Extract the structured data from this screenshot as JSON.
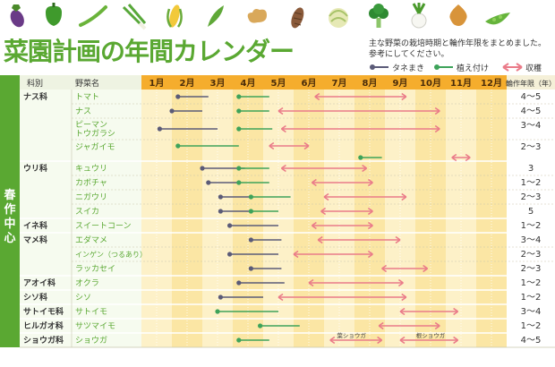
{
  "title": "菜園計画の年間カレンダー",
  "subtitle_lines": [
    "主な野菜の栽培時期と輪作年限をまとめました。",
    "参考にしてください。"
  ],
  "legend": {
    "sowing": "タネまき",
    "planting": "植え付け",
    "harvest": "収穫"
  },
  "colors": {
    "sowing": "#5b5b78",
    "planting": "#3ea35a",
    "harvest": "#ea7b89",
    "brand_green": "#5aa832",
    "header_orange": "#f5ad2d"
  },
  "vegetable_icons": [
    "eggplant-icon",
    "green-pepper-icon",
    "bean-icon",
    "green-onion-icon",
    "corn-icon",
    "okra-icon",
    "ginger-icon",
    "taro-icon",
    "cabbage-icon",
    "broccoli-icon",
    "turnip-icon",
    "onion-icon",
    "snap-pea-icon"
  ],
  "headers": {
    "family": "科別",
    "vegetable": "野菜名",
    "months": [
      "1月",
      "2月",
      "3月",
      "4月",
      "5月",
      "6月",
      "7月",
      "8月",
      "9月",
      "10月",
      "11月",
      "12月"
    ],
    "rotation": "輪作年限（年）"
  },
  "section_label": "春作中心",
  "chart_data": {
    "type": "gantt",
    "x_unit": "month",
    "xlim": [
      1,
      13
    ],
    "rows": [
      {
        "family": "ナス科",
        "name": "トマト",
        "rotation": "4～5",
        "bars": [
          {
            "type": "sowing",
            "start": 2.2,
            "end": 3.2
          },
          {
            "type": "planting",
            "start": 4.2,
            "end": 5.2
          },
          {
            "type": "harvest",
            "start": 6.7,
            "end": 9.7
          }
        ]
      },
      {
        "family": "",
        "name": "ナス",
        "rotation": "4～5",
        "bars": [
          {
            "type": "sowing",
            "start": 2.0,
            "end": 3.0
          },
          {
            "type": "planting",
            "start": 4.2,
            "end": 5.2
          },
          {
            "type": "harvest",
            "start": 5.5,
            "end": 10.8
          }
        ]
      },
      {
        "family": "",
        "name": "ピーマン\nトウガラシ",
        "rotation": "3～4",
        "bars": [
          {
            "type": "sowing",
            "start": 1.6,
            "end": 3.5
          },
          {
            "type": "planting",
            "start": 4.2,
            "end": 5.3
          },
          {
            "type": "harvest",
            "start": 5.6,
            "end": 10.8
          }
        ]
      },
      {
        "family": "",
        "name": "ジャガイモ",
        "rotation": "2～3",
        "bars": [
          {
            "type": "planting",
            "start": 2.2,
            "end": 4.2
          },
          {
            "type": "harvest",
            "start": 5.2,
            "end": 6.5
          },
          {
            "type": "planting",
            "start": 8.2,
            "end": 8.9
          },
          {
            "type": "harvest",
            "start": 11.2,
            "end": 11.8
          }
        ]
      },
      {
        "family": "ウリ科",
        "name": "キュウリ",
        "rotation": "3",
        "bars": [
          {
            "type": "sowing",
            "start": 3.0,
            "end": 4.4
          },
          {
            "type": "planting",
            "start": 4.2,
            "end": 5.2
          },
          {
            "type": "harvest",
            "start": 5.6,
            "end": 8.4
          }
        ]
      },
      {
        "family": "",
        "name": "カボチャ",
        "rotation": "1～2",
        "bars": [
          {
            "type": "sowing",
            "start": 3.2,
            "end": 4.2
          },
          {
            "type": "planting",
            "start": 4.2,
            "end": 5.2
          },
          {
            "type": "harvest",
            "start": 6.6,
            "end": 8.6
          }
        ]
      },
      {
        "family": "",
        "name": "ニガウリ",
        "rotation": "2～3",
        "bars": [
          {
            "type": "sowing",
            "start": 3.6,
            "end": 4.6
          },
          {
            "type": "planting",
            "start": 4.6,
            "end": 5.9
          },
          {
            "type": "harvest",
            "start": 7.0,
            "end": 9.7
          }
        ]
      },
      {
        "family": "",
        "name": "スイカ",
        "rotation": "5",
        "bars": [
          {
            "type": "sowing",
            "start": 3.6,
            "end": 4.6
          },
          {
            "type": "planting",
            "start": 4.6,
            "end": 5.5
          },
          {
            "type": "harvest",
            "start": 6.9,
            "end": 8.6
          }
        ]
      },
      {
        "family": "イネ科",
        "name": "スイートコーン",
        "rotation": "1～2",
        "bars": [
          {
            "type": "sowing",
            "start": 3.9,
            "end": 5.5
          },
          {
            "type": "harvest",
            "start": 6.6,
            "end": 8.6
          }
        ]
      },
      {
        "family": "マメ科",
        "name": "エダマメ",
        "rotation": "3～4",
        "bars": [
          {
            "type": "sowing",
            "start": 4.6,
            "end": 5.6
          },
          {
            "type": "harvest",
            "start": 6.8,
            "end": 9.5
          }
        ]
      },
      {
        "family": "",
        "name": "インゲン（つるあり）",
        "rotation": "2～3",
        "bars": [
          {
            "type": "sowing",
            "start": 3.9,
            "end": 5.5
          },
          {
            "type": "harvest",
            "start": 6.0,
            "end": 8.6
          }
        ]
      },
      {
        "family": "",
        "name": "ラッカセイ",
        "rotation": "2～3",
        "bars": [
          {
            "type": "sowing",
            "start": 4.6,
            "end": 5.6
          },
          {
            "type": "harvest",
            "start": 8.9,
            "end": 10.4
          }
        ]
      },
      {
        "family": "アオイ科",
        "name": "オクラ",
        "rotation": "1～2",
        "bars": [
          {
            "type": "sowing",
            "start": 4.2,
            "end": 5.7
          },
          {
            "type": "harvest",
            "start": 6.5,
            "end": 9.6
          }
        ]
      },
      {
        "family": "シソ科",
        "name": "シソ",
        "rotation": "1～2",
        "bars": [
          {
            "type": "sowing",
            "start": 3.6,
            "end": 5.0
          },
          {
            "type": "harvest",
            "start": 5.5,
            "end": 9.7
          }
        ]
      },
      {
        "family": "サトイモ科",
        "name": "サトイモ",
        "rotation": "3～4",
        "bars": [
          {
            "type": "planting",
            "start": 3.5,
            "end": 5.5
          },
          {
            "type": "harvest",
            "start": 9.5,
            "end": 11.4
          }
        ]
      },
      {
        "family": "ヒルガオ科",
        "name": "サツマイモ",
        "rotation": "1～2",
        "bars": [
          {
            "type": "planting",
            "start": 4.9,
            "end": 6.2
          },
          {
            "type": "harvest",
            "start": 8.8,
            "end": 10.8
          }
        ]
      },
      {
        "family": "ショウガ科",
        "name": "ショウガ",
        "rotation": "4～5",
        "bars": [
          {
            "type": "planting",
            "start": 4.2,
            "end": 5.2
          },
          {
            "type": "harvest",
            "start": 7.2,
            "end": 8.9
          },
          {
            "type": "harvest",
            "start": 9.5,
            "end": 11.4
          }
        ],
        "annotations": [
          {
            "text": "葉ショウガ",
            "x": 7.9
          },
          {
            "text": "根ショウガ",
            "x": 10.5
          }
        ]
      }
    ]
  }
}
